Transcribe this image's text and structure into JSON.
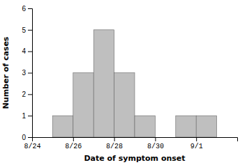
{
  "chart_data": {
    "type": "bar",
    "title": "",
    "xlabel": "Date of symptom onset",
    "ylabel": "Number of cases",
    "x": [
      1,
      2,
      3,
      4,
      5,
      7,
      8
    ],
    "values": [
      1,
      3,
      5,
      3,
      1,
      1,
      1
    ],
    "color": "#bfbfbf",
    "xlim": [
      0,
      10
    ],
    "xticks": [
      {
        "value": 0,
        "label": "8/24"
      },
      {
        "value": 2,
        "label": "8/26"
      },
      {
        "value": 4,
        "label": "8/28"
      },
      {
        "value": 6,
        "label": "8/30"
      },
      {
        "value": 8,
        "label": "9/1"
      }
    ],
    "ylim": [
      0,
      6
    ],
    "yticks": [
      0,
      1,
      2,
      3,
      4,
      5,
      6
    ],
    "grid": false
  }
}
